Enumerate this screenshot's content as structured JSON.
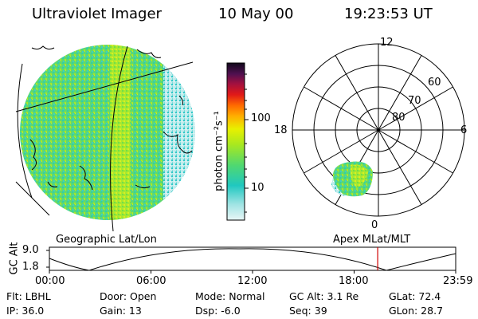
{
  "header": {
    "instrument": "Ultraviolet Imager",
    "date": "10 May 00",
    "time": "19:23:53 UT"
  },
  "colorbar": {
    "label": "photon cm⁻²s⁻¹",
    "ticks": [
      "100",
      "10"
    ],
    "colors": [
      "#1a0a2e",
      "#3a0a52",
      "#6a0a5a",
      "#a0103a",
      "#d8102a",
      "#ff6a00",
      "#ffb000",
      "#ffe000",
      "#d8f000",
      "#a8e820",
      "#70e050",
      "#40d890",
      "#20c8c8",
      "#80e0e0",
      "#d0f0f0"
    ]
  },
  "polar_plot": {
    "hour_labels": [
      "12",
      "18",
      "6",
      "0"
    ],
    "lat_labels": [
      "60",
      "70",
      "80"
    ]
  },
  "timeline": {
    "left_label": "Geographic Lat/Lon",
    "right_label": "Apex MLat/MLT",
    "y_axis_title": "GC Alt",
    "y_ticks": [
      "9.0",
      "1.8"
    ],
    "x_ticks": [
      "00:00",
      "06:00",
      "12:00",
      "18:00",
      "23:59"
    ],
    "marker_time_fraction": 0.808
  },
  "info": {
    "flt": "Flt: LBHL",
    "ip": "IP: 36.0",
    "door": "Door: Open",
    "gain": "Gain: 13",
    "mode": "Mode: Normal",
    "dsp": "Dsp:   -6.0",
    "gcalt": "GC Alt: 3.1 Re",
    "seq": "Seq: 39",
    "glat": "GLat:  72.4",
    "glon": "GLon:  28.7"
  }
}
